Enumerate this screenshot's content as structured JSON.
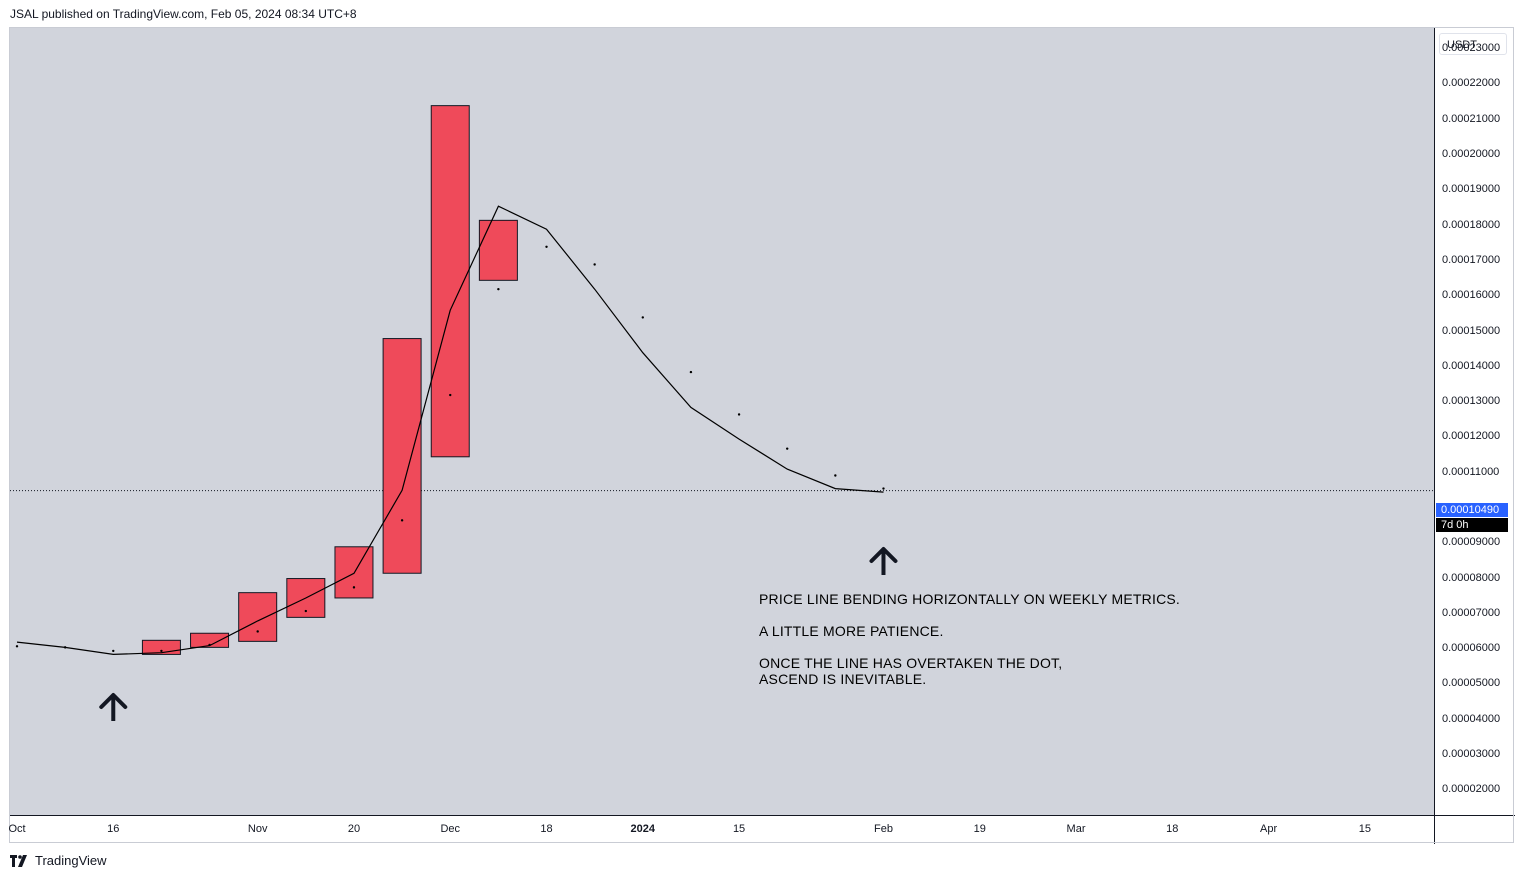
{
  "header": {
    "text": "JSAL published on TradingView.com, Feb 05, 2024 08:34 UTC+8"
  },
  "footer": {
    "brand": "TradingView",
    "logo_icon": "tradingview-logo-icon"
  },
  "axis": {
    "currency": "USDT",
    "current_price_label": "0.00010490",
    "countdown_label": "7d 0h"
  },
  "annotations": {
    "line1": "PRICE LINE BENDING HORIZONTALLY ON WEEKLY METRICS.",
    "line2": "A LITTLE MORE PATIENCE.",
    "line3": "ONCE THE LINE HAS OVERTAKEN THE DOT,",
    "line4": "ASCEND IS INEVITABLE."
  },
  "colors": {
    "background": "#d1d4dc",
    "bear_candle": "#ef4a5a",
    "price_line": "#000000",
    "price_tag": "#2962ff"
  },
  "chart_data": {
    "type": "candlestick",
    "timeframe": "weekly",
    "y_tick_labels": [
      "0.00023000",
      "0.00022000",
      "0.00021000",
      "0.00020000",
      "0.00019000",
      "0.00018000",
      "0.00017000",
      "0.00016000",
      "0.00015000",
      "0.00014000",
      "0.00013000",
      "0.00012000",
      "0.00011000",
      "0.00009000",
      "0.00008000",
      "0.00007000",
      "0.00006000",
      "0.00005000",
      "0.00004000",
      "0.00003000",
      "0.00002000"
    ],
    "y_tick_values": [
      0.00023,
      0.00022,
      0.00021,
      0.0002,
      0.00019,
      0.00018,
      0.00017,
      0.00016,
      0.00015,
      0.00014,
      0.00013,
      0.00012,
      0.00011,
      9e-05,
      8e-05,
      7e-05,
      6e-05,
      5e-05,
      4e-05,
      3e-05,
      2e-05
    ],
    "ylim": [
      1.3e-05,
      0.000236
    ],
    "x_tick_labels": [
      {
        "label": "Oct",
        "date": "2023-10-02"
      },
      {
        "label": "16",
        "date": "2023-10-16"
      },
      {
        "label": "Nov",
        "date": "2023-11-06"
      },
      {
        "label": "20",
        "date": "2023-11-20"
      },
      {
        "label": "Dec",
        "date": "2023-12-04"
      },
      {
        "label": "18",
        "date": "2023-12-18"
      },
      {
        "label": "2024",
        "date": "2024-01-01",
        "bold": true
      },
      {
        "label": "15",
        "date": "2024-01-15"
      },
      {
        "label": "Feb",
        "date": "2024-02-05"
      },
      {
        "label": "19",
        "date": "2024-02-19"
      },
      {
        "label": "Mar",
        "date": "2024-03-04"
      },
      {
        "label": "18",
        "date": "2024-03-18"
      },
      {
        "label": "Apr",
        "date": "2024-04-01"
      },
      {
        "label": "15",
        "date": "2024-04-15"
      }
    ],
    "xlim": [
      "2023-10-02",
      "2024-04-22"
    ],
    "candles": [
      {
        "date": "2023-10-23",
        "open": 6.25e-05,
        "close": 5.85e-05
      },
      {
        "date": "2023-10-30",
        "open": 6.45e-05,
        "close": 6.05e-05
      },
      {
        "date": "2023-11-06",
        "open": 7.6e-05,
        "close": 6.22e-05
      },
      {
        "date": "2023-11-13",
        "open": 8e-05,
        "close": 6.9e-05
      },
      {
        "date": "2023-11-20",
        "open": 8.9e-05,
        "close": 7.45e-05
      },
      {
        "date": "2023-11-27",
        "open": 0.000148,
        "close": 8.15e-05
      },
      {
        "date": "2023-12-04",
        "open": 0.000214,
        "close": 0.0001145
      },
      {
        "date": "2023-12-11",
        "open": 0.0001815,
        "close": 0.0001645
      }
    ],
    "series": [
      {
        "name": "",
        "type": "line",
        "points": [
          {
            "date": "2023-10-02",
            "value": 6.2e-05
          },
          {
            "date": "2023-10-09",
            "value": 6.05e-05
          },
          {
            "date": "2023-10-16",
            "value": 5.85e-05
          },
          {
            "date": "2023-10-23",
            "value": 5.9e-05
          },
          {
            "date": "2023-10-30",
            "value": 6.1e-05
          },
          {
            "date": "2023-11-06",
            "value": 6.8e-05
          },
          {
            "date": "2023-11-13",
            "value": 7.45e-05
          },
          {
            "date": "2023-11-20",
            "value": 8.15e-05
          },
          {
            "date": "2023-11-27",
            "value": 0.000105
          },
          {
            "date": "2023-12-04",
            "value": 0.000156
          },
          {
            "date": "2023-12-11",
            "value": 0.0001855
          },
          {
            "date": "2023-12-18",
            "value": 0.000179
          },
          {
            "date": "2023-12-25",
            "value": 0.000162
          },
          {
            "date": "2024-01-01",
            "value": 0.000144
          },
          {
            "date": "2024-01-08",
            "value": 0.0001285
          },
          {
            "date": "2024-01-15",
            "value": 0.0001195
          },
          {
            "date": "2024-01-22",
            "value": 0.000111
          },
          {
            "date": "2024-01-29",
            "value": 0.0001055
          },
          {
            "date": "2024-02-05",
            "value": 0.0001045
          }
        ]
      },
      {
        "name": "",
        "type": "dots",
        "points": [
          {
            "date": "2023-10-02",
            "value": 6.08e-05
          },
          {
            "date": "2023-10-09",
            "value": 6.05e-05
          },
          {
            "date": "2023-10-16",
            "value": 5.95e-05
          },
          {
            "date": "2023-10-23",
            "value": 5.95e-05
          },
          {
            "date": "2023-10-30",
            "value": 6.12e-05
          },
          {
            "date": "2023-11-06",
            "value": 6.5e-05
          },
          {
            "date": "2023-11-13",
            "value": 7.08e-05
          },
          {
            "date": "2023-11-20",
            "value": 7.75e-05
          },
          {
            "date": "2023-11-27",
            "value": 9.65e-05
          },
          {
            "date": "2023-12-04",
            "value": 0.000132
          },
          {
            "date": "2023-12-11",
            "value": 0.000162
          },
          {
            "date": "2023-12-18",
            "value": 0.000174
          },
          {
            "date": "2023-12-25",
            "value": 0.000169
          },
          {
            "date": "2024-01-01",
            "value": 0.000154
          },
          {
            "date": "2024-01-08",
            "value": 0.0001385
          },
          {
            "date": "2024-01-15",
            "value": 0.0001265
          },
          {
            "date": "2024-01-22",
            "value": 0.0001168
          },
          {
            "date": "2024-01-29",
            "value": 0.0001092
          },
          {
            "date": "2024-02-05",
            "value": 0.0001055
          }
        ]
      }
    ],
    "current_price": 0.0001049,
    "arrows": [
      {
        "date": "2023-10-16",
        "direction": "up"
      },
      {
        "date": "2024-02-05",
        "direction": "up"
      }
    ],
    "grid": false
  }
}
